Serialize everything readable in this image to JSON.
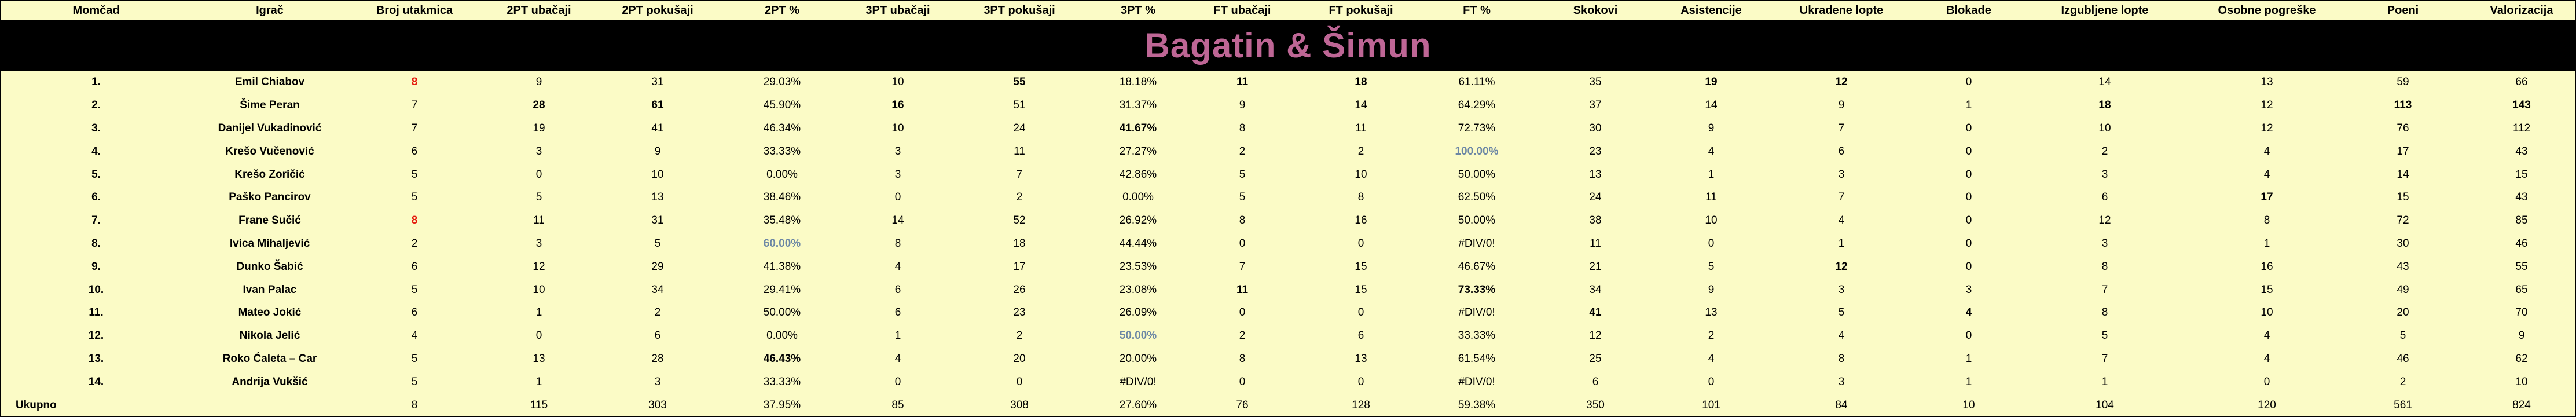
{
  "title": "Bagatin & Šimun",
  "colors": {
    "sheet_background": "#fbfbc6",
    "title_bar_background": "#000000",
    "title_text": "#be6695",
    "highlight_red": "#e4180c",
    "highlight_blue": "#6c87a5"
  },
  "table": {
    "headers": [
      "Momčad",
      "Igrač",
      "Broj utakmica",
      "2PT ubačaji",
      "2PT pokušaji",
      "2PT %",
      "3PT ubačaji",
      "3PT pokušaji",
      "3PT %",
      "FT ubačaji",
      "FT pokušaji",
      "FT %",
      "Skokovi",
      "Asistencije",
      "Ukradene lopte",
      "Blokade",
      "Izgubljene lopte",
      "Osobne pogreške",
      "Poeni",
      "Valorizacija"
    ],
    "rows": [
      {
        "rank": "1.",
        "player": "Emil Chiabov",
        "cells": [
          {
            "v": "8",
            "c": "red"
          },
          {
            "v": "9"
          },
          {
            "v": "31"
          },
          {
            "v": "29.03%"
          },
          {
            "v": "10"
          },
          {
            "v": "55",
            "c": "bold"
          },
          {
            "v": "18.18%"
          },
          {
            "v": "11",
            "c": "bold"
          },
          {
            "v": "18",
            "c": "bold"
          },
          {
            "v": "61.11%"
          },
          {
            "v": "35"
          },
          {
            "v": "19",
            "c": "bold"
          },
          {
            "v": "12",
            "c": "bold"
          },
          {
            "v": "0"
          },
          {
            "v": "14"
          },
          {
            "v": "13"
          },
          {
            "v": "59"
          },
          {
            "v": "66"
          }
        ]
      },
      {
        "rank": "2.",
        "player": "Šime Peran",
        "cells": [
          {
            "v": "7"
          },
          {
            "v": "28",
            "c": "bold"
          },
          {
            "v": "61",
            "c": "bold"
          },
          {
            "v": "45.90%"
          },
          {
            "v": "16",
            "c": "bold"
          },
          {
            "v": "51"
          },
          {
            "v": "31.37%"
          },
          {
            "v": "9"
          },
          {
            "v": "14"
          },
          {
            "v": "64.29%"
          },
          {
            "v": "37"
          },
          {
            "v": "14"
          },
          {
            "v": "9"
          },
          {
            "v": "1"
          },
          {
            "v": "18",
            "c": "bold"
          },
          {
            "v": "12"
          },
          {
            "v": "113",
            "c": "bold"
          },
          {
            "v": "143",
            "c": "bold"
          }
        ]
      },
      {
        "rank": "3.",
        "player": "Danijel Vukadinović",
        "cells": [
          {
            "v": "7"
          },
          {
            "v": "19"
          },
          {
            "v": "41"
          },
          {
            "v": "46.34%"
          },
          {
            "v": "10"
          },
          {
            "v": "24"
          },
          {
            "v": "41.67%",
            "c": "bold"
          },
          {
            "v": "8"
          },
          {
            "v": "11"
          },
          {
            "v": "72.73%"
          },
          {
            "v": "30"
          },
          {
            "v": "9"
          },
          {
            "v": "7"
          },
          {
            "v": "0"
          },
          {
            "v": "10"
          },
          {
            "v": "12"
          },
          {
            "v": "76"
          },
          {
            "v": "112"
          }
        ]
      },
      {
        "rank": "4.",
        "player": "Krešo Vučenović",
        "cells": [
          {
            "v": "6"
          },
          {
            "v": "3"
          },
          {
            "v": "9"
          },
          {
            "v": "33.33%"
          },
          {
            "v": "3"
          },
          {
            "v": "11"
          },
          {
            "v": "27.27%"
          },
          {
            "v": "2"
          },
          {
            "v": "2"
          },
          {
            "v": "100.00%",
            "c": "blue"
          },
          {
            "v": "23"
          },
          {
            "v": "4"
          },
          {
            "v": "6"
          },
          {
            "v": "0"
          },
          {
            "v": "2"
          },
          {
            "v": "4"
          },
          {
            "v": "17"
          },
          {
            "v": "43"
          }
        ]
      },
      {
        "rank": "5.",
        "player": "Krešo Zoričić",
        "cells": [
          {
            "v": "5"
          },
          {
            "v": "0"
          },
          {
            "v": "10"
          },
          {
            "v": "0.00%"
          },
          {
            "v": "3"
          },
          {
            "v": "7"
          },
          {
            "v": "42.86%"
          },
          {
            "v": "5"
          },
          {
            "v": "10"
          },
          {
            "v": "50.00%"
          },
          {
            "v": "13"
          },
          {
            "v": "1"
          },
          {
            "v": "3"
          },
          {
            "v": "0"
          },
          {
            "v": "3"
          },
          {
            "v": "4"
          },
          {
            "v": "14"
          },
          {
            "v": "15"
          }
        ]
      },
      {
        "rank": "6.",
        "player": "Paško Pancirov",
        "cells": [
          {
            "v": "5"
          },
          {
            "v": "5"
          },
          {
            "v": "13"
          },
          {
            "v": "38.46%"
          },
          {
            "v": "0"
          },
          {
            "v": "2"
          },
          {
            "v": "0.00%"
          },
          {
            "v": "5"
          },
          {
            "v": "8"
          },
          {
            "v": "62.50%"
          },
          {
            "v": "24"
          },
          {
            "v": "11"
          },
          {
            "v": "7"
          },
          {
            "v": "0"
          },
          {
            "v": "6"
          },
          {
            "v": "17",
            "c": "bold"
          },
          {
            "v": "15"
          },
          {
            "v": "43"
          }
        ]
      },
      {
        "rank": "7.",
        "player": "Frane Sučić",
        "cells": [
          {
            "v": "8",
            "c": "red"
          },
          {
            "v": "11"
          },
          {
            "v": "31"
          },
          {
            "v": "35.48%"
          },
          {
            "v": "14"
          },
          {
            "v": "52"
          },
          {
            "v": "26.92%"
          },
          {
            "v": "8"
          },
          {
            "v": "16"
          },
          {
            "v": "50.00%"
          },
          {
            "v": "38"
          },
          {
            "v": "10"
          },
          {
            "v": "4"
          },
          {
            "v": "0"
          },
          {
            "v": "12"
          },
          {
            "v": "8"
          },
          {
            "v": "72"
          },
          {
            "v": "85"
          }
        ]
      },
      {
        "rank": "8.",
        "player": "Ivica Mihaljević",
        "cells": [
          {
            "v": "2"
          },
          {
            "v": "3"
          },
          {
            "v": "5"
          },
          {
            "v": "60.00%",
            "c": "blue"
          },
          {
            "v": "8"
          },
          {
            "v": "18"
          },
          {
            "v": "44.44%"
          },
          {
            "v": "0"
          },
          {
            "v": "0"
          },
          {
            "v": "#DIV/0!"
          },
          {
            "v": "11"
          },
          {
            "v": "0"
          },
          {
            "v": "1"
          },
          {
            "v": "0"
          },
          {
            "v": "3"
          },
          {
            "v": "1"
          },
          {
            "v": "30"
          },
          {
            "v": "46"
          }
        ]
      },
      {
        "rank": "9.",
        "player": "Dunko Šabić",
        "cells": [
          {
            "v": "6"
          },
          {
            "v": "12"
          },
          {
            "v": "29"
          },
          {
            "v": "41.38%"
          },
          {
            "v": "4"
          },
          {
            "v": "17"
          },
          {
            "v": "23.53%"
          },
          {
            "v": "7"
          },
          {
            "v": "15"
          },
          {
            "v": "46.67%"
          },
          {
            "v": "21"
          },
          {
            "v": "5"
          },
          {
            "v": "12",
            "c": "bold"
          },
          {
            "v": "0"
          },
          {
            "v": "8"
          },
          {
            "v": "16"
          },
          {
            "v": "43"
          },
          {
            "v": "55"
          }
        ]
      },
      {
        "rank": "10.",
        "player": "Ivan Palac",
        "cells": [
          {
            "v": "5"
          },
          {
            "v": "10"
          },
          {
            "v": "34"
          },
          {
            "v": "29.41%"
          },
          {
            "v": "6"
          },
          {
            "v": "26"
          },
          {
            "v": "23.08%"
          },
          {
            "v": "11",
            "c": "bold"
          },
          {
            "v": "15"
          },
          {
            "v": "73.33%",
            "c": "bold"
          },
          {
            "v": "34"
          },
          {
            "v": "9"
          },
          {
            "v": "3"
          },
          {
            "v": "3"
          },
          {
            "v": "7"
          },
          {
            "v": "15"
          },
          {
            "v": "49"
          },
          {
            "v": "65"
          }
        ]
      },
      {
        "rank": "11.",
        "player": "Mateo Jokić",
        "cells": [
          {
            "v": "6"
          },
          {
            "v": "1"
          },
          {
            "v": "2"
          },
          {
            "v": "50.00%"
          },
          {
            "v": "6"
          },
          {
            "v": "23"
          },
          {
            "v": "26.09%"
          },
          {
            "v": "0"
          },
          {
            "v": "0"
          },
          {
            "v": "#DIV/0!"
          },
          {
            "v": "41",
            "c": "bold"
          },
          {
            "v": "13"
          },
          {
            "v": "5"
          },
          {
            "v": "4",
            "c": "bold"
          },
          {
            "v": "8"
          },
          {
            "v": "10"
          },
          {
            "v": "20"
          },
          {
            "v": "70"
          }
        ]
      },
      {
        "rank": "12.",
        "player": "Nikola Jelić",
        "cells": [
          {
            "v": "4"
          },
          {
            "v": "0"
          },
          {
            "v": "6"
          },
          {
            "v": "0.00%"
          },
          {
            "v": "1"
          },
          {
            "v": "2"
          },
          {
            "v": "50.00%",
            "c": "blue"
          },
          {
            "v": "2"
          },
          {
            "v": "6"
          },
          {
            "v": "33.33%"
          },
          {
            "v": "12"
          },
          {
            "v": "2"
          },
          {
            "v": "4"
          },
          {
            "v": "0"
          },
          {
            "v": "5"
          },
          {
            "v": "4"
          },
          {
            "v": "5"
          },
          {
            "v": "9"
          }
        ]
      },
      {
        "rank": "13.",
        "player": "Roko Ćaleta – Car",
        "cells": [
          {
            "v": "5"
          },
          {
            "v": "13"
          },
          {
            "v": "28"
          },
          {
            "v": "46.43%",
            "c": "bold"
          },
          {
            "v": "4"
          },
          {
            "v": "20"
          },
          {
            "v": "20.00%"
          },
          {
            "v": "8"
          },
          {
            "v": "13"
          },
          {
            "v": "61.54%"
          },
          {
            "v": "25"
          },
          {
            "v": "4"
          },
          {
            "v": "8"
          },
          {
            "v": "1"
          },
          {
            "v": "7"
          },
          {
            "v": "4"
          },
          {
            "v": "46"
          },
          {
            "v": "62"
          }
        ]
      },
      {
        "rank": "14.",
        "player": "Andrija Vukšić",
        "cells": [
          {
            "v": "5"
          },
          {
            "v": "1"
          },
          {
            "v": "3"
          },
          {
            "v": "33.33%"
          },
          {
            "v": "0"
          },
          {
            "v": "0"
          },
          {
            "v": "#DIV/0!"
          },
          {
            "v": "0"
          },
          {
            "v": "0"
          },
          {
            "v": "#DIV/0!"
          },
          {
            "v": "6"
          },
          {
            "v": "0"
          },
          {
            "v": "3"
          },
          {
            "v": "1"
          },
          {
            "v": "1"
          },
          {
            "v": "0"
          },
          {
            "v": "2"
          },
          {
            "v": "10"
          }
        ]
      }
    ],
    "total_row": {
      "label": "Ukupno",
      "cells": [
        {
          "v": "8"
        },
        {
          "v": "115"
        },
        {
          "v": "303"
        },
        {
          "v": "37.95%"
        },
        {
          "v": "85"
        },
        {
          "v": "308"
        },
        {
          "v": "27.60%"
        },
        {
          "v": "76"
        },
        {
          "v": "128"
        },
        {
          "v": "59.38%"
        },
        {
          "v": "350"
        },
        {
          "v": "101"
        },
        {
          "v": "84"
        },
        {
          "v": "10"
        },
        {
          "v": "104"
        },
        {
          "v": "120"
        },
        {
          "v": "561"
        },
        {
          "v": "824"
        }
      ]
    }
  }
}
